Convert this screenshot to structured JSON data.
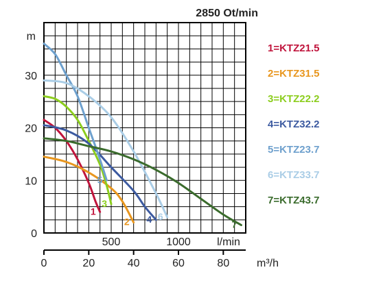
{
  "chart_data": {
    "type": "line",
    "title": "2850 Ot/min",
    "ylabel": "m",
    "xlabel_flow": "l/min",
    "xlabel_m3h": "m³/h",
    "ylim": [
      0,
      40
    ],
    "xlim_m3h": [
      0,
      90
    ],
    "y_ticks": [
      "0",
      "10",
      "20",
      "30"
    ],
    "x_ticks_lmin": [
      "500",
      "1000"
    ],
    "x_ticks_m3h": [
      "0",
      "20",
      "40",
      "60",
      "80"
    ],
    "grid": true,
    "legend_position": "right",
    "series": [
      {
        "name": "1=KTZ21.5",
        "label": "1",
        "color": "#c0143c",
        "x": [
          0,
          5,
          10,
          15,
          20,
          23,
          25
        ],
        "y": [
          21.5,
          20,
          17.5,
          14,
          9.5,
          6,
          4
        ]
      },
      {
        "name": "2=KTZ31.5",
        "label": "2",
        "color": "#e8961e",
        "x": [
          0,
          10,
          20,
          30,
          35,
          40
        ],
        "y": [
          14.5,
          13.5,
          11.5,
          8.5,
          6,
          2
        ]
      },
      {
        "name": "3=KTZ22.2",
        "label": "3",
        "color": "#8ccd1e",
        "x": [
          0,
          5,
          10,
          15,
          20,
          25,
          28,
          30
        ],
        "y": [
          26,
          25.5,
          24,
          21.5,
          17.5,
          13,
          9,
          5.5
        ]
      },
      {
        "name": "4=KTZ32.2",
        "label": "4",
        "color": "#3c5aa0",
        "x": [
          0,
          10,
          20,
          30,
          40,
          45,
          50
        ],
        "y": [
          20.5,
          19.5,
          17,
          12.5,
          8,
          5,
          2.5
        ]
      },
      {
        "name": "5=KTZ23.7",
        "label": "5",
        "color": "#6ea0cd",
        "x": [
          0,
          5,
          10,
          15,
          20,
          25,
          28
        ],
        "y": [
          36,
          34,
          30,
          26,
          20,
          14,
          10
        ]
      },
      {
        "name": "6=KTZ33.7",
        "label": "6",
        "color": "#aacde6",
        "x": [
          0,
          10,
          20,
          30,
          40,
          50,
          55
        ],
        "y": [
          29,
          28.5,
          26,
          22,
          15.5,
          7.5,
          3
        ]
      },
      {
        "name": "7=KTZ43.7",
        "label": "7",
        "color": "#3a6b2c",
        "x": [
          0,
          10,
          20,
          30,
          40,
          50,
          60,
          70,
          80,
          88
        ],
        "y": [
          18,
          17.5,
          16.5,
          15.5,
          14,
          12,
          9.5,
          6.5,
          3.5,
          1.5
        ]
      }
    ]
  }
}
